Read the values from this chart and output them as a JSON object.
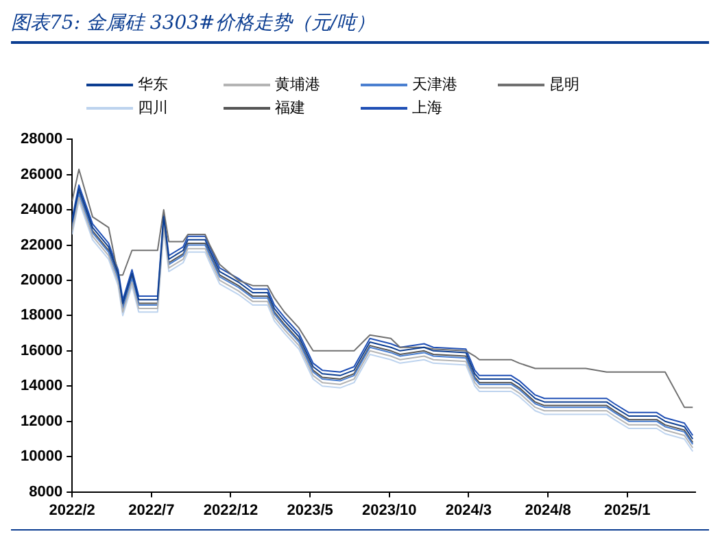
{
  "chart_data": {
    "type": "line",
    "title": "图表75: 金属硅 3303#价格走势（元/吨）",
    "x": [
      "2022-02-01",
      "2022-02-13",
      "2022-03-10",
      "2022-04-10",
      "2022-04-28",
      "2022-05-07",
      "2022-05-25",
      "2022-06-07",
      "2022-07-13",
      "2022-07-25",
      "2022-08-04",
      "2022-09-01",
      "2022-09-10",
      "2022-10-13",
      "2022-10-22",
      "2022-11-10",
      "2022-12-16",
      "2023-01-13",
      "2023-02-10",
      "2023-02-22",
      "2023-03-13",
      "2023-04-10",
      "2023-05-07",
      "2023-05-25",
      "2023-06-28",
      "2023-07-25",
      "2023-08-25",
      "2023-10-04",
      "2023-10-22",
      "2023-12-07",
      "2023-12-25",
      "2024-02-25",
      "2024-03-13",
      "2024-03-22",
      "2024-05-22",
      "2024-06-07",
      "2024-07-07",
      "2024-07-25",
      "2024-10-13",
      "2024-11-22",
      "2024-12-07",
      "2025-01-04",
      "2025-02-25",
      "2025-03-13",
      "2025-04-19",
      "2025-05-05"
    ],
    "series": [
      {
        "name": "华东",
        "color": "#0b3d91",
        "values": [
          23300,
          25200,
          23000,
          21900,
          20400,
          18700,
          20400,
          18900,
          18900,
          23600,
          21200,
          21700,
          22300,
          22300,
          21700,
          20500,
          19900,
          19300,
          19300,
          18400,
          17700,
          16800,
          15100,
          14700,
          14600,
          14900,
          16500,
          16200,
          16000,
          16200,
          16000,
          15900,
          14700,
          14400,
          14400,
          14100,
          13300,
          13100,
          13100,
          13100,
          12800,
          12300,
          12300,
          12000,
          11700,
          11000
        ]
      },
      {
        "name": "黄埔港",
        "color": "#b4b4b4",
        "values": [
          22800,
          24700,
          22500,
          21400,
          19900,
          18200,
          19900,
          18400,
          18400,
          23100,
          20700,
          21200,
          21800,
          21800,
          21200,
          20000,
          19400,
          18800,
          18800,
          17900,
          17200,
          16300,
          14600,
          14200,
          14100,
          14400,
          16000,
          15700,
          15500,
          15700,
          15500,
          15400,
          14200,
          13900,
          13900,
          13600,
          12800,
          12600,
          12600,
          12600,
          12300,
          11800,
          11800,
          11500,
          11200,
          10500
        ]
      },
      {
        "name": "天津港",
        "color": "#4a7fd0",
        "values": [
          23000,
          24900,
          22700,
          21600,
          20100,
          18400,
          20100,
          18600,
          18600,
          23300,
          20900,
          21400,
          22000,
          22000,
          21400,
          20200,
          19600,
          19000,
          19000,
          18100,
          17400,
          16500,
          14800,
          14400,
          14300,
          14600,
          16200,
          15900,
          15700,
          15900,
          15700,
          15600,
          14400,
          14100,
          14100,
          13800,
          13000,
          12800,
          12800,
          12800,
          12500,
          12000,
          12000,
          11700,
          11400,
          10700
        ]
      },
      {
        "name": "昆明",
        "color": "#707070",
        "values": [
          24500,
          26300,
          23600,
          23000,
          20300,
          20300,
          21700,
          21700,
          21700,
          24000,
          22200,
          22200,
          22600,
          22600,
          22000,
          20900,
          20000,
          19700,
          19700,
          19000,
          18200,
          17300,
          16000,
          16000,
          16000,
          16000,
          16900,
          16700,
          16200,
          16200,
          16100,
          16000,
          15700,
          15500,
          15500,
          15300,
          15000,
          15000,
          15000,
          14800,
          14800,
          14800,
          14800,
          14800,
          12800,
          12800
        ]
      },
      {
        "name": "四川",
        "color": "#bdd3ee",
        "values": [
          22600,
          24500,
          22300,
          21200,
          19700,
          18000,
          19700,
          18200,
          18200,
          22900,
          20500,
          21000,
          21600,
          21600,
          21000,
          19800,
          19200,
          18600,
          18600,
          17700,
          17000,
          16100,
          14400,
          14000,
          13900,
          14200,
          15800,
          15500,
          15300,
          15500,
          15300,
          15200,
          14000,
          13700,
          13700,
          13400,
          12600,
          12400,
          12400,
          12400,
          12100,
          11600,
          11600,
          11300,
          11000,
          10300
        ]
      },
      {
        "name": "福建",
        "color": "#555555",
        "values": [
          23100,
          25000,
          22800,
          21700,
          20200,
          18500,
          20200,
          18700,
          18700,
          23400,
          21000,
          21500,
          22100,
          22100,
          21500,
          20300,
          19700,
          19100,
          19100,
          18200,
          17500,
          16600,
          14900,
          14500,
          14400,
          14700,
          16300,
          16000,
          15800,
          16000,
          15800,
          15700,
          14500,
          14200,
          14200,
          13900,
          13100,
          12900,
          12900,
          12900,
          12600,
          12100,
          12100,
          11800,
          11500,
          10800
        ]
      },
      {
        "name": "上海",
        "color": "#1f4fb5",
        "values": [
          23500,
          25400,
          23200,
          22100,
          20600,
          18900,
          20600,
          19100,
          19100,
          23800,
          21400,
          21900,
          22500,
          22500,
          21900,
          20700,
          20100,
          19500,
          19500,
          18600,
          17900,
          17000,
          15300,
          14900,
          14800,
          15100,
          16700,
          16400,
          16200,
          16400,
          16200,
          16100,
          14900,
          14600,
          14600,
          14300,
          13500,
          13300,
          13300,
          13300,
          13000,
          12500,
          12500,
          12200,
          11900,
          11200
        ]
      }
    ],
    "xlim": [
      "2022-02-01",
      "2025-05-10"
    ],
    "xticks": [
      {
        "value": "2022-02-01",
        "label": "2022/2"
      },
      {
        "value": "2022-07-01",
        "label": "2022/7"
      },
      {
        "value": "2022-12-01",
        "label": "2022/12"
      },
      {
        "value": "2023-05-01",
        "label": "2023/5"
      },
      {
        "value": "2023-10-01",
        "label": "2023/10"
      },
      {
        "value": "2024-03-01",
        "label": "2024/3"
      },
      {
        "value": "2024-08-01",
        "label": "2024/8"
      },
      {
        "value": "2025-01-01",
        "label": "2025/1"
      }
    ],
    "ylim": [
      8000,
      28000
    ],
    "yticks": [
      8000,
      10000,
      12000,
      14000,
      16000,
      18000,
      20000,
      22000,
      24000,
      26000,
      28000
    ],
    "grid": false,
    "legend": "top",
    "marker": "none",
    "line_style": "solid"
  }
}
